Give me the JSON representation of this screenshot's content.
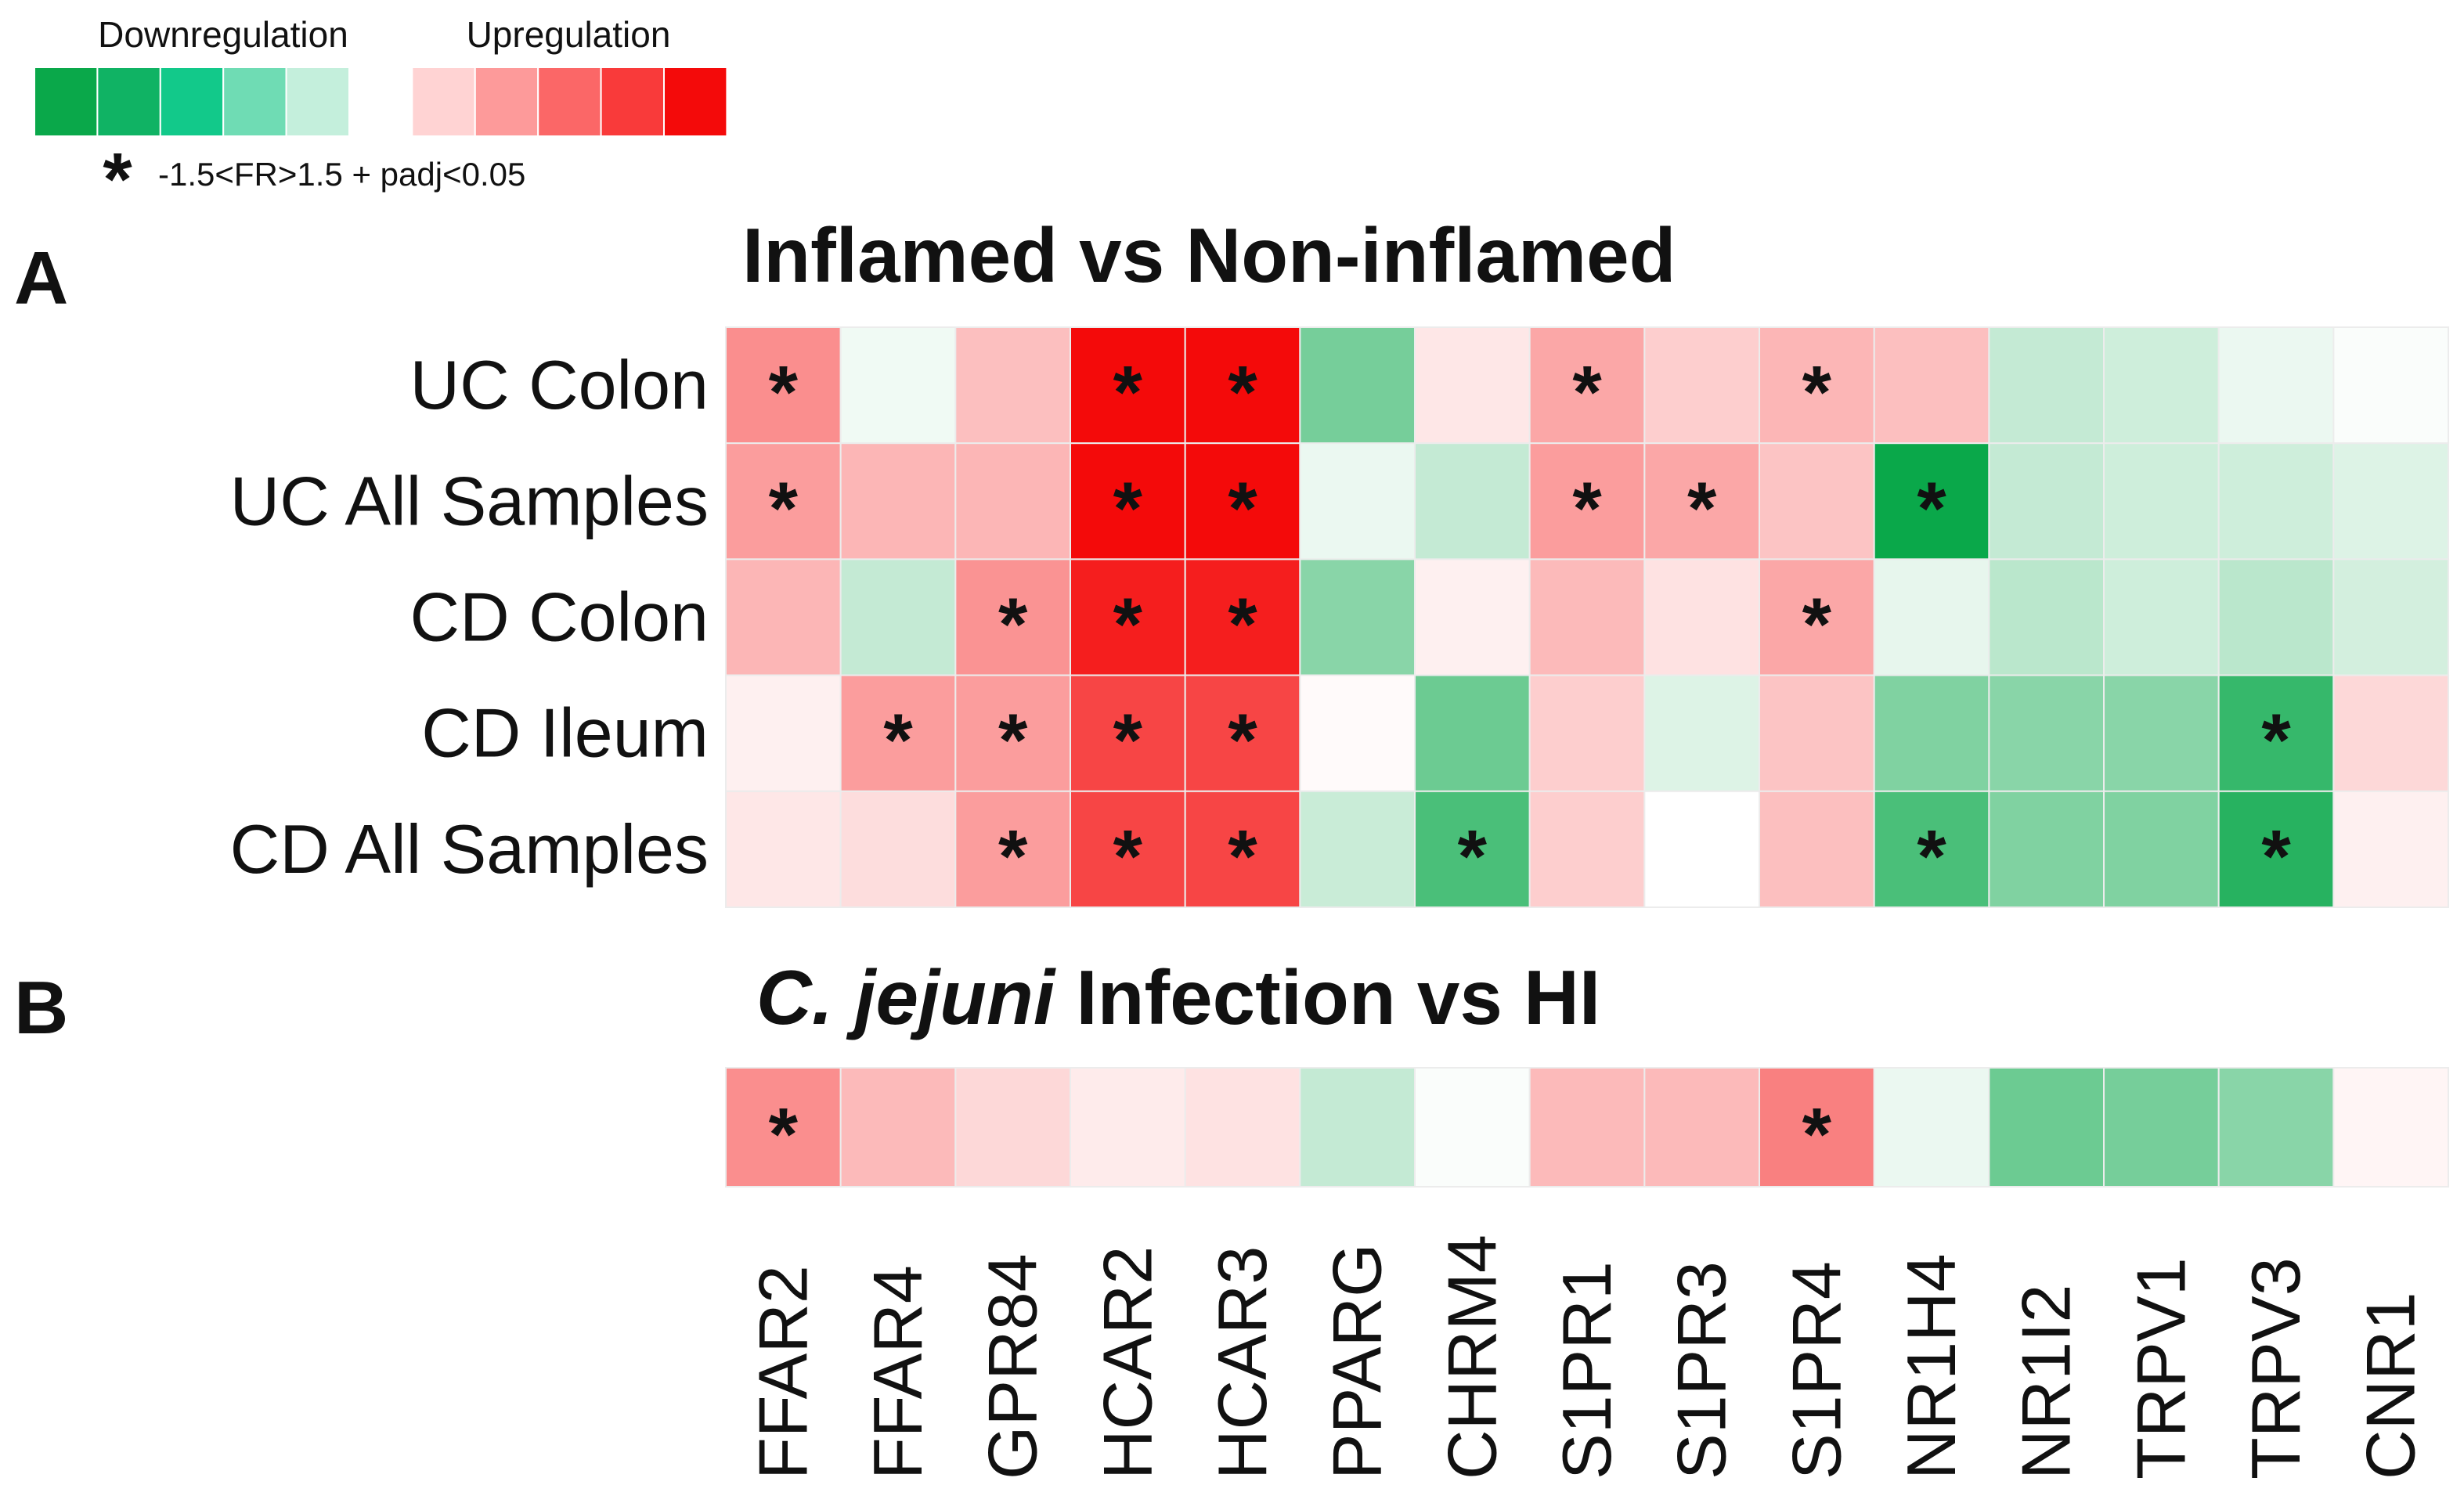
{
  "legend": {
    "down_label": "Downregulation",
    "up_label": "Upregulation",
    "swatches": [
      "#0aa84a",
      "#10b364",
      "#12c98a",
      "#6fdcb4",
      "#c4efdc",
      "#ffffff",
      "#ffd3d3",
      "#fd9a9a",
      "#fb6767",
      "#f93a3a",
      "#f40a0a"
    ],
    "sig_symbol": "*",
    "sig_label": "-1.5<FR>1.5 + padj<0.05"
  },
  "chart_data": [
    {
      "type": "heatmap",
      "panel": "A",
      "title": "Inflamed vs Non-inflamed",
      "value_scale": "level from -5 (strong downregulation, green) to +5 (strong upregulation, red)",
      "columns": [
        "FFAR2",
        "FFAR4",
        "GPR84",
        "HCAR2",
        "HCAR3",
        "PPARG",
        "CHRM4",
        "S1PR1",
        "S1PR3",
        "S1PR4",
        "NR1H4",
        "NR1I2",
        "TRPV1",
        "TRPV3",
        "CNR1"
      ],
      "rows": [
        {
          "label": "UC Colon",
          "values": [
            2.3,
            -0.3,
            1.3,
            5.0,
            5.0,
            -2.8,
            0.5,
            1.8,
            1.0,
            1.5,
            1.3,
            -1.2,
            -1.0,
            -0.4,
            -0.1
          ],
          "significant": [
            true,
            false,
            false,
            true,
            true,
            false,
            false,
            true,
            false,
            true,
            false,
            false,
            false,
            false,
            false
          ]
        },
        {
          "label": "UC All Samples",
          "values": [
            2.0,
            1.5,
            1.5,
            5.0,
            5.0,
            -0.4,
            -1.2,
            2.0,
            1.8,
            1.2,
            -5.0,
            -1.2,
            -1.0,
            -1.0,
            -0.7
          ],
          "significant": [
            true,
            false,
            false,
            true,
            true,
            false,
            false,
            true,
            true,
            false,
            true,
            false,
            false,
            false,
            false
          ]
        },
        {
          "label": "CD Colon",
          "values": [
            1.5,
            -1.2,
            2.2,
            4.6,
            4.6,
            -2.4,
            0.3,
            1.4,
            0.6,
            1.8,
            -0.5,
            -1.4,
            -1.0,
            -1.4,
            -0.9
          ],
          "significant": [
            false,
            false,
            true,
            true,
            true,
            false,
            false,
            false,
            false,
            true,
            false,
            false,
            false,
            false,
            false
          ]
        },
        {
          "label": "CD Ileum",
          "values": [
            0.3,
            2.0,
            2.0,
            3.8,
            3.8,
            0.1,
            -3.0,
            1.0,
            -0.7,
            1.2,
            -2.6,
            -2.4,
            -2.4,
            -4.1,
            0.8
          ],
          "significant": [
            false,
            true,
            true,
            true,
            true,
            false,
            false,
            false,
            false,
            false,
            false,
            false,
            false,
            true,
            false
          ]
        },
        {
          "label": "CD All Samples",
          "values": [
            0.5,
            0.7,
            2.0,
            3.8,
            3.8,
            -1.1,
            -3.7,
            1.0,
            0.0,
            1.3,
            -3.7,
            -2.6,
            -2.6,
            -4.4,
            0.3
          ],
          "significant": [
            false,
            false,
            true,
            true,
            true,
            false,
            true,
            false,
            false,
            false,
            true,
            false,
            false,
            true,
            false
          ]
        }
      ]
    },
    {
      "type": "heatmap",
      "panel": "B",
      "title_italic": "C. jejuni",
      "title_rest": " Infection vs HI",
      "columns": [
        "FFAR2",
        "FFAR4",
        "GPR84",
        "HCAR2",
        "HCAR3",
        "PPARG",
        "CHRM4",
        "S1PR1",
        "S1PR3",
        "S1PR4",
        "NR1H4",
        "NR1I2",
        "TRPV1",
        "TRPV3",
        "CNR1"
      ],
      "rows": [
        {
          "label": "",
          "values": [
            2.3,
            1.4,
            0.8,
            0.4,
            0.6,
            -1.2,
            -0.1,
            1.4,
            1.4,
            2.6,
            -0.4,
            -3.0,
            -2.8,
            -2.4,
            0.2
          ],
          "significant": [
            true,
            false,
            false,
            false,
            false,
            false,
            false,
            false,
            false,
            true,
            false,
            false,
            false,
            false,
            false
          ]
        }
      ]
    }
  ]
}
